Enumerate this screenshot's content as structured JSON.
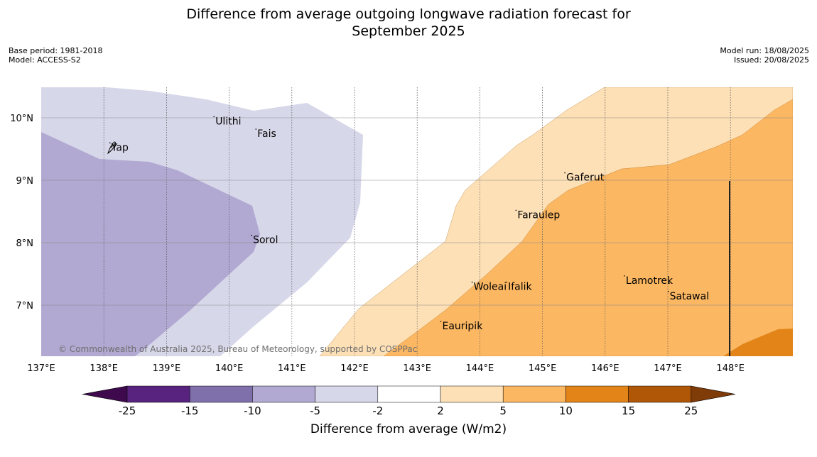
{
  "title_line1": "Difference from average outgoing longwave radiation forecast for",
  "title_line2": "September 2025",
  "base_period": "Base period: 1981-2018",
  "model": "Model: ACCESS-S2",
  "model_run": "Model run: 18/08/2025",
  "issued": "Issued: 20/08/2025",
  "copyright": "© Commonwealth of Australia 2025, Bureau of Meteorology, supported by COSPPac",
  "map": {
    "lon_range": [
      137.0,
      149.0
    ],
    "lat_range": [
      6.2,
      10.5
    ],
    "lon_ticks": [
      {
        "value": 137,
        "label": "137°E"
      },
      {
        "value": 138,
        "label": "138°E"
      },
      {
        "value": 139,
        "label": "139°E"
      },
      {
        "value": 140,
        "label": "140°E"
      },
      {
        "value": 141,
        "label": "141°E"
      },
      {
        "value": 142,
        "label": "142°E"
      },
      {
        "value": 143,
        "label": "143°E"
      },
      {
        "value": 144,
        "label": "144°E"
      },
      {
        "value": 145,
        "label": "145°E"
      },
      {
        "value": 146,
        "label": "146°E"
      },
      {
        "value": 147,
        "label": "147°E"
      },
      {
        "value": 148,
        "label": "148°E"
      }
    ],
    "lat_ticks": [
      {
        "value": 10,
        "label": "10°N"
      },
      {
        "value": 9,
        "label": "9°N"
      },
      {
        "value": 8,
        "label": "8°N"
      },
      {
        "value": 7,
        "label": "7°N"
      }
    ],
    "places": [
      {
        "name": "Ulithi",
        "lon": 139.78,
        "lat": 9.95
      },
      {
        "name": "Fais",
        "lon": 140.45,
        "lat": 9.75
      },
      {
        "name": "Yap",
        "lon": 138.12,
        "lat": 9.53
      },
      {
        "name": "Gaferut",
        "lon": 145.38,
        "lat": 9.05
      },
      {
        "name": "Faraulep",
        "lon": 144.6,
        "lat": 8.45
      },
      {
        "name": "Sorol",
        "lon": 140.38,
        "lat": 8.05
      },
      {
        "name": "Lamotrek",
        "lon": 146.33,
        "lat": 7.4
      },
      {
        "name": "Woleai",
        "lon": 143.9,
        "lat": 7.3
      },
      {
        "name": "Ifalik",
        "lon": 144.45,
        "lat": 7.3
      },
      {
        "name": "Satawal",
        "lon": 147.03,
        "lat": 7.15
      },
      {
        "name": "Eauripik",
        "lon": 143.4,
        "lat": 6.67
      }
    ],
    "region_colors": {
      "lt_minus10": "#b1a9d2",
      "minus10_to_minus5": "#d7d7ea",
      "plus2_to_plus5": "#fde0b6",
      "plus5_to_plus10": "#fbb762",
      "plus10_to_plus15": "#e28417"
    }
  },
  "colorbar": {
    "label": "Difference from average (W/m2)",
    "ticks": [
      "-25",
      "-15",
      "-10",
      "-5",
      "-2",
      "2",
      "5",
      "10",
      "15",
      "25"
    ],
    "colors": [
      "#3f0a4d",
      "#58227f",
      "#7f6fab",
      "#b1a9d2",
      "#d7d7ea",
      "#ffffff",
      "#fde0b6",
      "#fbb762",
      "#e28417",
      "#b05707",
      "#7f3b08"
    ]
  }
}
